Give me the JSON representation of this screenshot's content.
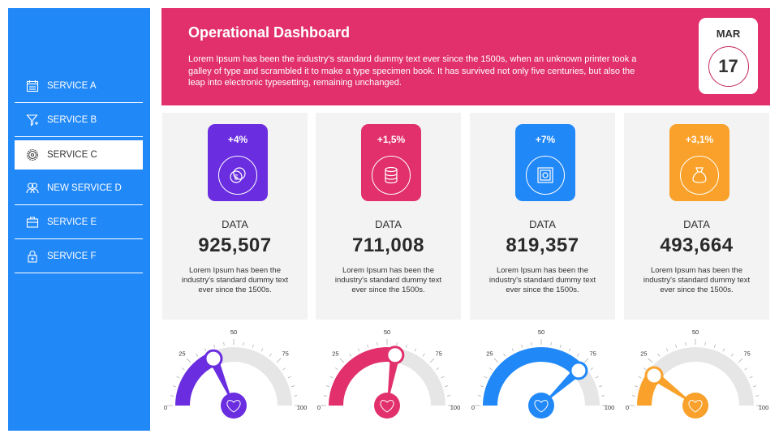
{
  "sidebar": {
    "items": [
      {
        "label": "SERVICE A",
        "icon": "calendar-icon",
        "active": false
      },
      {
        "label": "SERVICE B",
        "icon": "funnel-icon",
        "active": false
      },
      {
        "label": "SERVICE C",
        "icon": "gear-icon",
        "active": true
      },
      {
        "label": "NEW SERVICE D",
        "icon": "users-icon",
        "active": false
      },
      {
        "label": "SERVICE E",
        "icon": "toolbox-icon",
        "active": false
      },
      {
        "label": "SERVICE F",
        "icon": "lock-icon",
        "active": false
      }
    ]
  },
  "header": {
    "title": "Operational Dashboard",
    "description": "Lorem Ipsum has been the industry's standard dummy text ever since the 1500s, when an unknown printer took a galley of type and scrambled it to make a type specimen book. It has survived not only five centuries, but also the leap into electronic typesetting, remaining unchanged.",
    "date": {
      "month": "MAR",
      "day": "17"
    }
  },
  "cards": [
    {
      "change": "+4%",
      "icon": "coins-icon",
      "label": "DATA",
      "value": "925,507",
      "description": "Lorem Ipsum has been the industry's standard dummy text ever since the 1500s.",
      "color": "#6a2de0",
      "gauge": 37
    },
    {
      "change": "+1,5%",
      "icon": "database-icon",
      "label": "DATA",
      "value": "711,008",
      "description": "Lorem Ipsum has been the industry's standard dummy text ever since the 1500s.",
      "color": "#e1306c",
      "gauge": 55
    },
    {
      "change": "+7%",
      "icon": "safe-icon",
      "label": "DATA",
      "value": "819,357",
      "description": "Lorem Ipsum has been the industry's standard dummy text ever since the 1500s.",
      "color": "#2188f8",
      "gauge": 76
    },
    {
      "change": "+3,1%",
      "icon": "money-bag-icon",
      "label": "DATA",
      "value": "493,664",
      "description": "Lorem Ipsum has been the industry's standard dummy text ever since the 1500s.",
      "color": "#f9a12a",
      "gauge": 20
    }
  ],
  "gauge_ticks": [
    "0",
    "25",
    "50",
    "75",
    "100"
  ],
  "colors": {
    "sidebar": "#2188f8",
    "header": "#e1306c",
    "track": "#e6e6e6"
  }
}
